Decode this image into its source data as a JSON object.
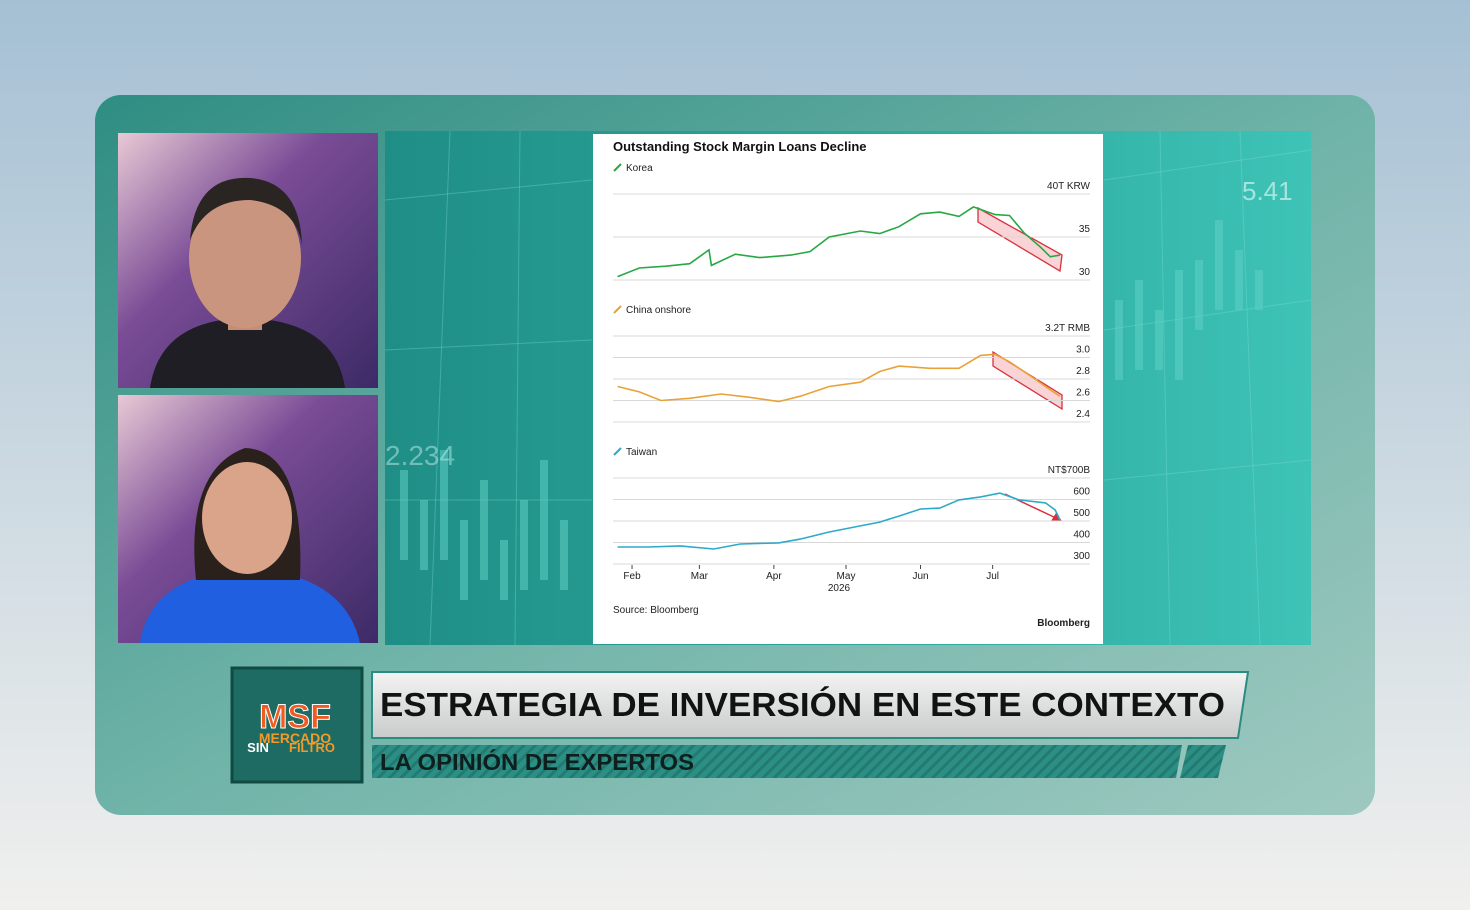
{
  "broadcast": {
    "headline": "ESTRATEGIA DE INVERSIÓN EN ESTE CONTEXTO",
    "subheadline": "LA OPINIÓN DE EXPERTOS",
    "logo": {
      "main": "MSF",
      "line1": "MERCADO",
      "line2_a": "SIN",
      "line2_b": "FILTRO"
    },
    "background_labels": [
      "5.41",
      "2.234"
    ]
  },
  "chart_notes": {
    "source": "Source: Bloomberg",
    "brand": "Bloomberg"
  },
  "chart_data": [
    {
      "type": "line",
      "title": "Outstanding Stock Margin Loans Decline",
      "series": [
        {
          "name": "Korea",
          "color": "#27a844",
          "x": [
            26,
            35,
            46,
            56,
            64,
            65,
            75,
            85,
            98,
            106,
            114,
            127,
            135,
            143,
            152,
            160,
            168,
            174,
            183,
            189,
            195,
            202,
            206,
            210
          ],
          "values": [
            30.4,
            31.4,
            31.6,
            31.9,
            33.5,
            31.7,
            33.0,
            32.6,
            32.9,
            33.3,
            35.0,
            35.7,
            35.4,
            36.2,
            37.7,
            37.9,
            37.4,
            38.5,
            37.6,
            37.5,
            35.5,
            33.8,
            32.7,
            32.9
          ]
        }
      ],
      "xlim": [
        22,
        220
      ],
      "ylim": [
        30,
        40
      ],
      "yticks": [
        {
          "value": 40,
          "label": "40T KRW"
        },
        35,
        30
      ],
      "grid": true
    },
    {
      "type": "line",
      "series": [
        {
          "name": "China onshore",
          "color": "#e9a237",
          "x": [
            26,
            35,
            44,
            56,
            69,
            81,
            93,
            102,
            114,
            127,
            135,
            143,
            156,
            168,
            177,
            183,
            189,
            197,
            206,
            210
          ],
          "values": [
            2.73,
            2.68,
            2.6,
            2.62,
            2.66,
            2.63,
            2.59,
            2.64,
            2.73,
            2.77,
            2.87,
            2.92,
            2.9,
            2.9,
            3.02,
            3.03,
            2.96,
            2.84,
            2.7,
            2.64
          ]
        }
      ],
      "xlim": [
        22,
        220
      ],
      "ylim": [
        2.4,
        3.2
      ],
      "yticks": [
        {
          "value": 3.2,
          "label": "3.2T RMB"
        },
        {
          "value": 3.0,
          "label": "3.0"
        },
        2.8,
        2.6,
        2.4
      ],
      "grid": true
    },
    {
      "type": "line",
      "series": [
        {
          "name": "Taiwan",
          "color": "#2eaac8",
          "x": [
            26,
            39,
            52,
            66,
            77,
            93,
            102,
            114,
            127,
            135,
            143,
            152,
            160,
            168,
            177,
            185,
            193,
            204,
            208,
            210
          ],
          "values": [
            379,
            379,
            384,
            370,
            393,
            398,
            416,
            449,
            477,
            495,
            523,
            556,
            560,
            598,
            612,
            630,
            598,
            584,
            551,
            505
          ]
        }
      ],
      "xlim": [
        22,
        220
      ],
      "ylim": [
        300,
        700
      ],
      "yticks": [
        {
          "value": 700,
          "label": "NT$700B"
        },
        600,
        500,
        400,
        300
      ],
      "grid": true,
      "xticks": [
        {
          "value": 32,
          "label": "Feb"
        },
        {
          "value": 60,
          "label": "Mar"
        },
        {
          "value": 91,
          "label": "Apr"
        },
        {
          "value": 121,
          "label": "May"
        },
        {
          "value": 152,
          "label": "Jun"
        },
        {
          "value": 182,
          "label": "Jul"
        }
      ],
      "xlabel": "2026"
    }
  ]
}
